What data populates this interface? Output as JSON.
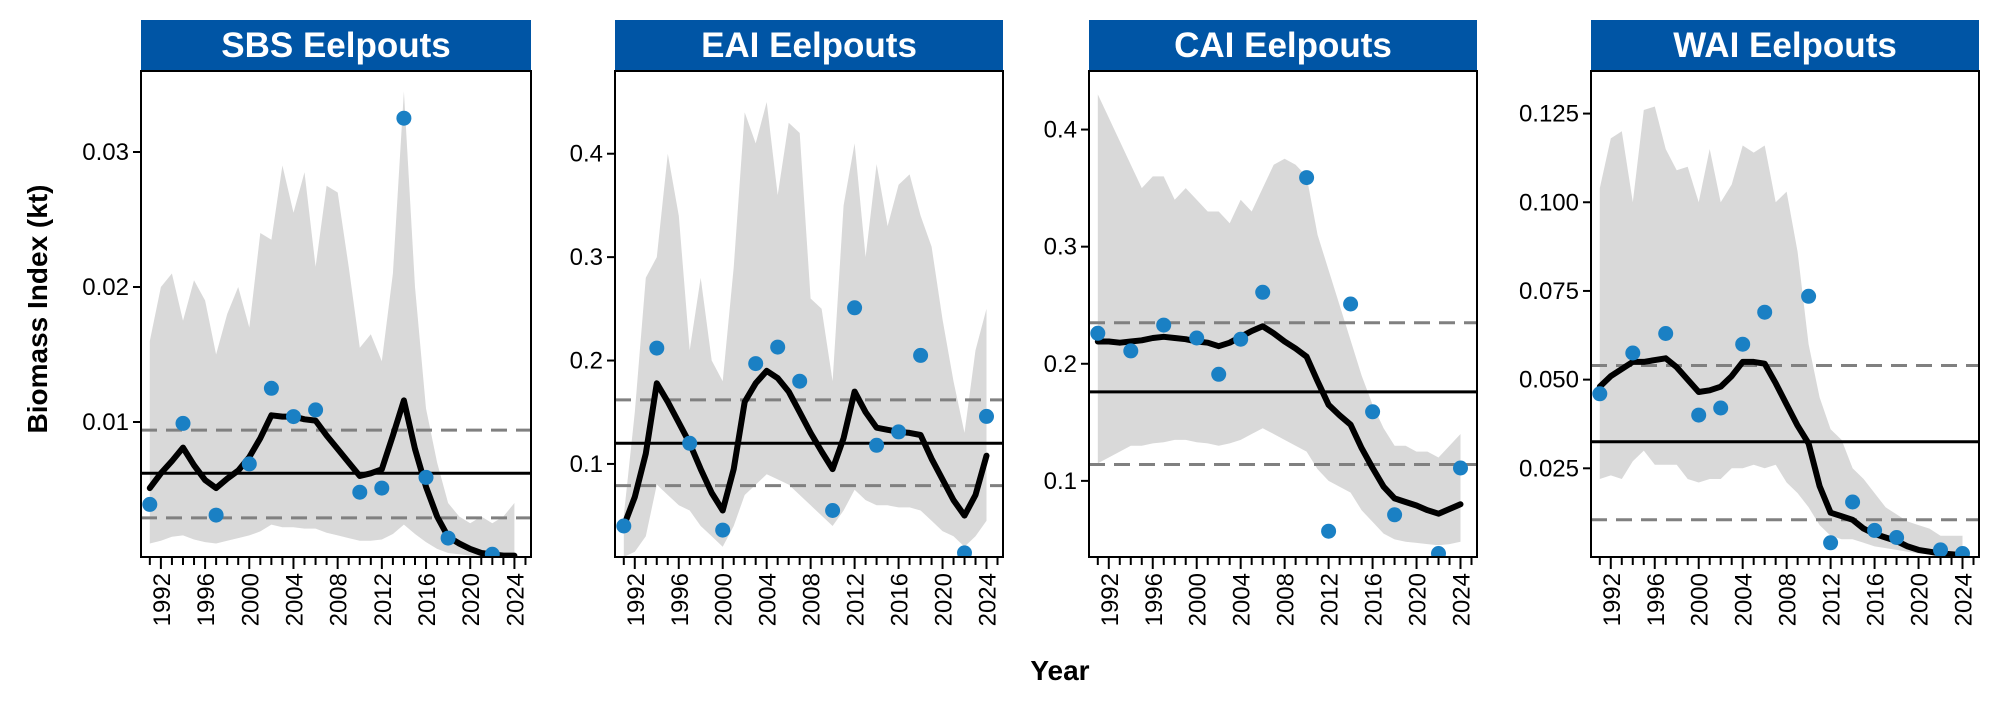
{
  "xlabel": "Year",
  "ylabel": "Biomass Index (kt)",
  "colors": {
    "strip": "#0055a5",
    "ribbon": "#d9d9d9",
    "points": "#1a80c4",
    "trend": "#000000",
    "mean_line": "#000000",
    "bound_lines": "#808080"
  },
  "chart_data": [
    {
      "type": "line",
      "title": "SBS Eelpouts",
      "x_ticks": [
        "1992",
        "1996",
        "2000",
        "2004",
        "2008",
        "2012",
        "2016",
        "2020",
        "2024"
      ],
      "y_ticks": [
        "0.01",
        "0.02",
        "0.03"
      ],
      "ylim": [
        0.0,
        0.036
      ],
      "xlim": [
        1990.2,
        2025.5
      ],
      "mean": 0.0062,
      "lower_bound": 0.0029,
      "upper_bound": 0.0094,
      "points": {
        "x": [
          1991,
          1994,
          1997,
          2000,
          2002,
          2004,
          2006,
          2010,
          2012,
          2014,
          2016,
          2018,
          2022
        ],
        "y": [
          0.0039,
          0.0099,
          0.0031,
          0.0069,
          0.0125,
          0.0104,
          0.0109,
          0.0048,
          0.0051,
          0.0325,
          0.0059,
          0.0014,
          0.0002
        ]
      },
      "trend": {
        "x": [
          1991,
          1992,
          1993,
          1994,
          1995,
          1996,
          1997,
          1998,
          1999,
          2000,
          2001,
          2002,
          2003,
          2004,
          2005,
          2006,
          2007,
          2008,
          2009,
          2010,
          2011,
          2012,
          2013,
          2014,
          2015,
          2016,
          2017,
          2018,
          2019,
          2020,
          2021,
          2022,
          2023,
          2024
        ],
        "y": [
          0.0051,
          0.0062,
          0.0071,
          0.0081,
          0.0068,
          0.0057,
          0.0051,
          0.0058,
          0.0064,
          0.0074,
          0.0088,
          0.0105,
          0.0104,
          0.0104,
          0.0102,
          0.0101,
          0.009,
          0.008,
          0.007,
          0.006,
          0.0062,
          0.0065,
          0.009,
          0.0116,
          0.008,
          0.0052,
          0.003,
          0.0015,
          0.001,
          0.0006,
          0.0003,
          0.0002,
          0.0001,
          0.0001
        ]
      },
      "ci_lower": [
        0.001,
        0.0012,
        0.0015,
        0.0016,
        0.0013,
        0.0011,
        0.001,
        0.0012,
        0.0014,
        0.0016,
        0.0019,
        0.0024,
        0.0022,
        0.0022,
        0.0021,
        0.0021,
        0.0018,
        0.0016,
        0.0014,
        0.0012,
        0.0012,
        0.0013,
        0.0017,
        0.0024,
        0.0017,
        0.0011,
        0.0006,
        0.0003,
        0.0002,
        0.0001,
        0.0,
        0.0,
        0.0,
        0.0
      ],
      "ci_upper": [
        0.016,
        0.02,
        0.021,
        0.0175,
        0.0205,
        0.019,
        0.015,
        0.018,
        0.02,
        0.017,
        0.024,
        0.0235,
        0.029,
        0.0255,
        0.0285,
        0.0215,
        0.0275,
        0.027,
        0.0215,
        0.0155,
        0.0165,
        0.0145,
        0.021,
        0.0345,
        0.02,
        0.011,
        0.007,
        0.004,
        0.003,
        0.0025,
        0.003,
        0.0025,
        0.003,
        0.004
      ]
    },
    {
      "type": "line",
      "title": "EAI Eelpouts",
      "x_ticks": [
        "1992",
        "1996",
        "2000",
        "2004",
        "2008",
        "2012",
        "2016",
        "2020",
        "2024"
      ],
      "y_ticks": [
        "0.1",
        "0.2",
        "0.3",
        "0.4"
      ],
      "ylim": [
        0.01,
        0.48
      ],
      "xlim": [
        1990.2,
        2025.5
      ],
      "mean": 0.12,
      "lower_bound": 0.079,
      "upper_bound": 0.162,
      "points": {
        "x": [
          1991,
          1994,
          1997,
          2000,
          2003,
          2005,
          2007,
          2010,
          2012,
          2014,
          2016,
          2018,
          2022,
          2024
        ],
        "y": [
          0.04,
          0.212,
          0.12,
          0.036,
          0.197,
          0.213,
          0.18,
          0.055,
          0.251,
          0.118,
          0.131,
          0.205,
          0.014,
          0.146
        ]
      },
      "trend": {
        "x": [
          1991,
          1992,
          1993,
          1994,
          1995,
          1996,
          1997,
          1998,
          1999,
          2000,
          2001,
          2002,
          2003,
          2004,
          2005,
          2006,
          2007,
          2008,
          2009,
          2010,
          2011,
          2012,
          2013,
          2014,
          2015,
          2016,
          2017,
          2018,
          2019,
          2020,
          2021,
          2022,
          2023,
          2024
        ],
        "y": [
          0.04,
          0.068,
          0.11,
          0.178,
          0.16,
          0.14,
          0.12,
          0.095,
          0.072,
          0.055,
          0.095,
          0.16,
          0.178,
          0.19,
          0.183,
          0.17,
          0.15,
          0.13,
          0.112,
          0.095,
          0.125,
          0.17,
          0.15,
          0.135,
          0.133,
          0.131,
          0.13,
          0.128,
          0.105,
          0.085,
          0.065,
          0.05,
          0.07,
          0.108
        ]
      },
      "ci_lower": [
        0.01,
        0.015,
        0.03,
        0.08,
        0.07,
        0.06,
        0.055,
        0.04,
        0.03,
        0.02,
        0.04,
        0.07,
        0.08,
        0.09,
        0.085,
        0.08,
        0.07,
        0.06,
        0.05,
        0.04,
        0.055,
        0.075,
        0.065,
        0.06,
        0.06,
        0.058,
        0.058,
        0.055,
        0.045,
        0.035,
        0.03,
        0.02,
        0.03,
        0.045
      ],
      "ci_upper": [
        0.05,
        0.15,
        0.28,
        0.3,
        0.4,
        0.34,
        0.21,
        0.28,
        0.2,
        0.18,
        0.29,
        0.44,
        0.41,
        0.45,
        0.36,
        0.43,
        0.42,
        0.26,
        0.25,
        0.18,
        0.35,
        0.41,
        0.3,
        0.39,
        0.33,
        0.37,
        0.38,
        0.34,
        0.31,
        0.24,
        0.18,
        0.13,
        0.21,
        0.25
      ]
    },
    {
      "type": "line",
      "title": "CAI Eelpouts",
      "x_ticks": [
        "1992",
        "1996",
        "2000",
        "2004",
        "2008",
        "2012",
        "2016",
        "2020",
        "2024"
      ],
      "y_ticks": [
        "0.1",
        "0.2",
        "0.3",
        "0.4"
      ],
      "ylim": [
        0.035,
        0.45
      ],
      "xlim": [
        1990.2,
        2025.5
      ],
      "mean": 0.176,
      "lower_bound": 0.114,
      "upper_bound": 0.235,
      "points": {
        "x": [
          1991,
          1994,
          1997,
          2000,
          2002,
          2004,
          2006,
          2010,
          2012,
          2014,
          2016,
          2018,
          2022,
          2024
        ],
        "y": [
          0.226,
          0.211,
          0.233,
          0.222,
          0.191,
          0.221,
          0.261,
          0.359,
          0.057,
          0.251,
          0.159,
          0.071,
          0.038,
          0.111
        ]
      },
      "trend": {
        "x": [
          1991,
          1992,
          1993,
          1994,
          1995,
          1996,
          1997,
          1998,
          1999,
          2000,
          2001,
          2002,
          2003,
          2004,
          2005,
          2006,
          2007,
          2008,
          2009,
          2010,
          2011,
          2012,
          2013,
          2014,
          2015,
          2016,
          2017,
          2018,
          2019,
          2020,
          2021,
          2022,
          2023,
          2024
        ],
        "y": [
          0.219,
          0.219,
          0.218,
          0.219,
          0.22,
          0.222,
          0.223,
          0.222,
          0.221,
          0.219,
          0.218,
          0.215,
          0.218,
          0.223,
          0.228,
          0.232,
          0.226,
          0.219,
          0.213,
          0.206,
          0.185,
          0.165,
          0.156,
          0.148,
          0.128,
          0.111,
          0.095,
          0.085,
          0.082,
          0.079,
          0.075,
          0.072,
          0.076,
          0.08
        ]
      },
      "ci_lower": [
        0.115,
        0.12,
        0.125,
        0.13,
        0.13,
        0.132,
        0.133,
        0.135,
        0.135,
        0.133,
        0.132,
        0.13,
        0.132,
        0.135,
        0.14,
        0.145,
        0.14,
        0.135,
        0.13,
        0.125,
        0.11,
        0.1,
        0.095,
        0.09,
        0.075,
        0.065,
        0.055,
        0.05,
        0.048,
        0.047,
        0.046,
        0.045,
        0.046,
        0.048
      ],
      "ci_upper": [
        0.43,
        0.41,
        0.39,
        0.37,
        0.35,
        0.36,
        0.36,
        0.34,
        0.35,
        0.34,
        0.33,
        0.33,
        0.32,
        0.34,
        0.33,
        0.35,
        0.37,
        0.375,
        0.37,
        0.36,
        0.31,
        0.28,
        0.25,
        0.22,
        0.19,
        0.165,
        0.145,
        0.13,
        0.13,
        0.125,
        0.125,
        0.12,
        0.13,
        0.14
      ]
    },
    {
      "type": "line",
      "title": "WAI Eelpouts",
      "x_ticks": [
        "1992",
        "1996",
        "2000",
        "2004",
        "2008",
        "2012",
        "2016",
        "2020",
        "2024"
      ],
      "y_ticks": [
        "0.025",
        "0.050",
        "0.075",
        "0.100",
        "0.125"
      ],
      "ylim": [
        0.0,
        0.137
      ],
      "xlim": [
        1990.2,
        2025.5
      ],
      "mean": 0.0325,
      "lower_bound": 0.0105,
      "upper_bound": 0.054,
      "points": {
        "x": [
          1991,
          1994,
          1997,
          2000,
          2002,
          2004,
          2006,
          2010,
          2012,
          2014,
          2016,
          2018,
          2022,
          2024
        ],
        "y": [
          0.046,
          0.0575,
          0.063,
          0.04,
          0.042,
          0.06,
          0.069,
          0.0735,
          0.004,
          0.0155,
          0.0075,
          0.0055,
          0.002,
          0.001
        ]
      },
      "trend": {
        "x": [
          1991,
          1992,
          1993,
          1994,
          1995,
          1996,
          1997,
          1998,
          1999,
          2000,
          2001,
          2002,
          2003,
          2004,
          2005,
          2006,
          2007,
          2008,
          2009,
          2010,
          2011,
          2012,
          2013,
          2014,
          2015,
          2016,
          2017,
          2018,
          2019,
          2020,
          2021,
          2022,
          2023,
          2024
        ],
        "y": [
          0.048,
          0.051,
          0.053,
          0.055,
          0.055,
          0.0555,
          0.056,
          0.0535,
          0.05,
          0.0465,
          0.047,
          0.048,
          0.051,
          0.055,
          0.055,
          0.0545,
          0.049,
          0.043,
          0.037,
          0.032,
          0.02,
          0.0125,
          0.0115,
          0.0105,
          0.008,
          0.0065,
          0.0055,
          0.0045,
          0.003,
          0.002,
          0.0015,
          0.001,
          0.0008,
          0.0005
        ]
      },
      "ci_lower": [
        0.022,
        0.023,
        0.022,
        0.027,
        0.03,
        0.026,
        0.026,
        0.026,
        0.022,
        0.021,
        0.022,
        0.022,
        0.025,
        0.025,
        0.026,
        0.025,
        0.026,
        0.021,
        0.018,
        0.014,
        0.009,
        0.006,
        0.005,
        0.005,
        0.004,
        0.003,
        0.0025,
        0.002,
        0.0015,
        0.001,
        0.0007,
        0.0005,
        0.0004,
        0.0003
      ],
      "ci_upper": [
        0.104,
        0.118,
        0.12,
        0.1,
        0.126,
        0.127,
        0.115,
        0.109,
        0.11,
        0.1,
        0.115,
        0.1,
        0.105,
        0.116,
        0.114,
        0.116,
        0.1,
        0.103,
        0.086,
        0.06,
        0.045,
        0.036,
        0.033,
        0.025,
        0.022,
        0.018,
        0.014,
        0.012,
        0.01,
        0.009,
        0.008,
        0.006,
        0.006,
        0.006
      ]
    }
  ]
}
